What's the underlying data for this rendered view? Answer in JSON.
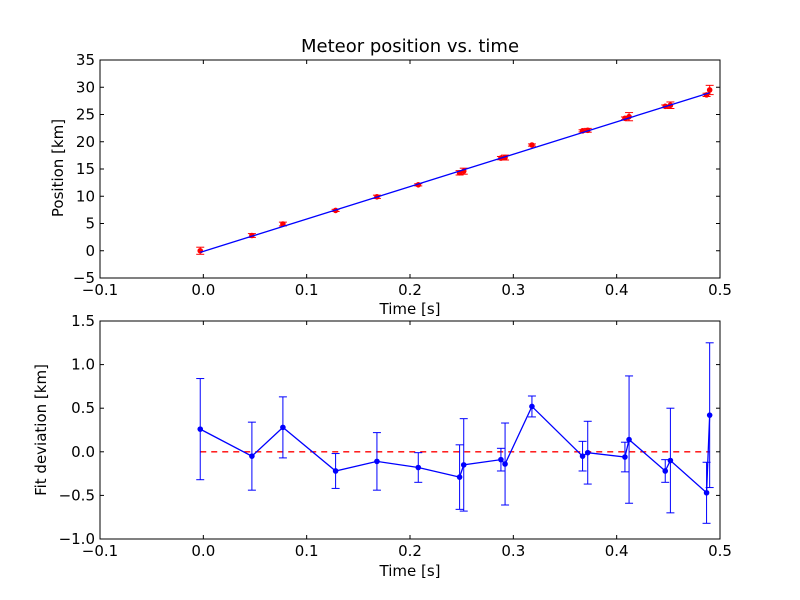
{
  "chart_data": [
    {
      "type": "scatter",
      "title": "Meteor position vs. time",
      "xlabel": "Time [s]",
      "ylabel": "Position [km]",
      "xlim": [
        -0.1,
        0.5
      ],
      "ylim": [
        -5,
        35
      ],
      "x_ticks": [
        "−0.1",
        "0.0",
        "0.1",
        "0.2",
        "0.3",
        "0.4",
        "0.5"
      ],
      "y_ticks": [
        "−5",
        "0",
        "5",
        "10",
        "15",
        "20",
        "25",
        "30",
        "35"
      ],
      "x_tick_values": [
        -0.1,
        0.0,
        0.1,
        0.2,
        0.3,
        0.4,
        0.5
      ],
      "y_tick_values": [
        -5,
        0,
        5,
        10,
        15,
        20,
        25,
        30,
        35
      ],
      "grid": false,
      "series": [
        {
          "kind": "points_with_errorbars",
          "color": "#ff0000",
          "errorbar_color": "#ff0000",
          "points": [
            {
              "x": -0.003,
              "y": 0.0,
              "err": 0.65
            },
            {
              "x": 0.047,
              "y": 2.8,
              "err": 0.35
            },
            {
              "x": 0.077,
              "y": 4.9,
              "err": 0.35
            },
            {
              "x": 0.128,
              "y": 7.4,
              "err": 0.2
            },
            {
              "x": 0.168,
              "y": 9.9,
              "err": 0.3
            },
            {
              "x": 0.208,
              "y": 12.1,
              "err": 0.2
            },
            {
              "x": 0.248,
              "y": 14.3,
              "err": 0.4
            },
            {
              "x": 0.252,
              "y": 14.6,
              "err": 0.55
            },
            {
              "x": 0.288,
              "y": 17.0,
              "err": 0.3
            },
            {
              "x": 0.292,
              "y": 17.1,
              "err": 0.45
            },
            {
              "x": 0.318,
              "y": 19.4,
              "err": 0.2
            },
            {
              "x": 0.367,
              "y": 22.0,
              "err": 0.2
            },
            {
              "x": 0.372,
              "y": 22.1,
              "err": 0.35
            },
            {
              "x": 0.408,
              "y": 24.3,
              "err": 0.25
            },
            {
              "x": 0.412,
              "y": 24.6,
              "err": 0.75
            },
            {
              "x": 0.447,
              "y": 26.5,
              "err": 0.25
            },
            {
              "x": 0.452,
              "y": 26.7,
              "err": 0.6
            },
            {
              "x": 0.487,
              "y": 28.6,
              "err": 0.3
            },
            {
              "x": 0.49,
              "y": 29.5,
              "err": 0.85
            }
          ]
        },
        {
          "kind": "fit_line",
          "color": "#0000ff",
          "x": [
            -0.003,
            0.49
          ],
          "y": [
            -0.3,
            29.0
          ]
        }
      ]
    },
    {
      "type": "line",
      "title": "",
      "xlabel": "Time [s]",
      "ylabel": "Fit deviation [km]",
      "xlim": [
        -0.1,
        0.5
      ],
      "ylim": [
        -1.0,
        1.5
      ],
      "x_ticks": [
        "−0.1",
        "0.0",
        "0.1",
        "0.2",
        "0.3",
        "0.4",
        "0.5"
      ],
      "y_ticks": [
        "−1.0",
        "−0.5",
        "0.0",
        "0.5",
        "1.0",
        "1.5"
      ],
      "x_tick_values": [
        -0.1,
        0.0,
        0.1,
        0.2,
        0.3,
        0.4,
        0.5
      ],
      "y_tick_values": [
        -1.0,
        -0.5,
        0.0,
        0.5,
        1.0,
        1.5
      ],
      "grid": false,
      "reference_line": {
        "y": 0.0,
        "color": "#ff0000",
        "style": "dashed"
      },
      "series": [
        {
          "kind": "line_with_errorbars",
          "color": "#0000ff",
          "points": [
            {
              "x": -0.003,
              "y": 0.26,
              "err": 0.58
            },
            {
              "x": 0.047,
              "y": -0.05,
              "err": 0.39
            },
            {
              "x": 0.077,
              "y": 0.28,
              "err": 0.35
            },
            {
              "x": 0.128,
              "y": -0.22,
              "err": 0.2
            },
            {
              "x": 0.168,
              "y": -0.11,
              "err": 0.33
            },
            {
              "x": 0.208,
              "y": -0.18,
              "err": 0.17
            },
            {
              "x": 0.248,
              "y": -0.29,
              "err": 0.37
            },
            {
              "x": 0.252,
              "y": -0.15,
              "err": 0.53
            },
            {
              "x": 0.288,
              "y": -0.09,
              "err": 0.13
            },
            {
              "x": 0.292,
              "y": -0.14,
              "err": 0.47
            },
            {
              "x": 0.318,
              "y": 0.52,
              "err": 0.12
            },
            {
              "x": 0.367,
              "y": -0.05,
              "err": 0.17
            },
            {
              "x": 0.372,
              "y": -0.01,
              "err": 0.36
            },
            {
              "x": 0.408,
              "y": -0.06,
              "err": 0.17
            },
            {
              "x": 0.412,
              "y": 0.14,
              "err": 0.73
            },
            {
              "x": 0.447,
              "y": -0.22,
              "err": 0.13
            },
            {
              "x": 0.452,
              "y": -0.1,
              "err": 0.6
            },
            {
              "x": 0.487,
              "y": -0.47,
              "err": 0.35
            },
            {
              "x": 0.49,
              "y": 0.42,
              "err": 0.83
            }
          ]
        }
      ]
    }
  ]
}
